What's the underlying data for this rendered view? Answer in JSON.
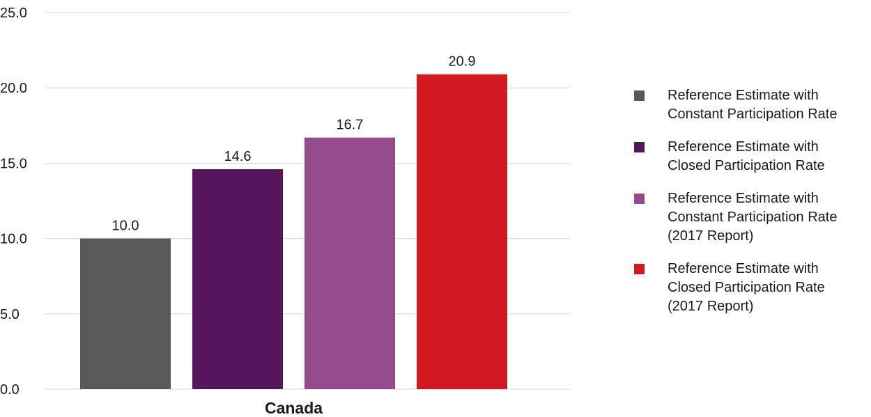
{
  "chart_data": {
    "type": "bar",
    "categories": [
      "Canada"
    ],
    "series": [
      {
        "name": "Reference Estimate with\nConstant Participation Rate",
        "values": [
          10.0
        ],
        "color": "#58595b"
      },
      {
        "name": "Reference Estimate with\nClosed Participation Rate",
        "values": [
          14.6
        ],
        "color": "#55165b"
      },
      {
        "name": "Reference Estimate with\nConstant Participation Rate\n(2017 Report)",
        "values": [
          16.7
        ],
        "color": "#944b8b"
      },
      {
        "name": "Reference Estimate with\nClosed Participation Rate\n(2017 Report)",
        "values": [
          20.9
        ],
        "color": "#d31920"
      }
    ],
    "data_labels": [
      "10.0",
      "14.6",
      "16.7",
      "20.9"
    ],
    "y_ticks": [
      "0.0",
      "5.0",
      "10.0",
      "15.0",
      "20.0",
      "25.0"
    ],
    "ylim": [
      0,
      25
    ],
    "grid": true,
    "legend_position": "right",
    "title": "",
    "xlabel": "",
    "ylabel": ""
  }
}
